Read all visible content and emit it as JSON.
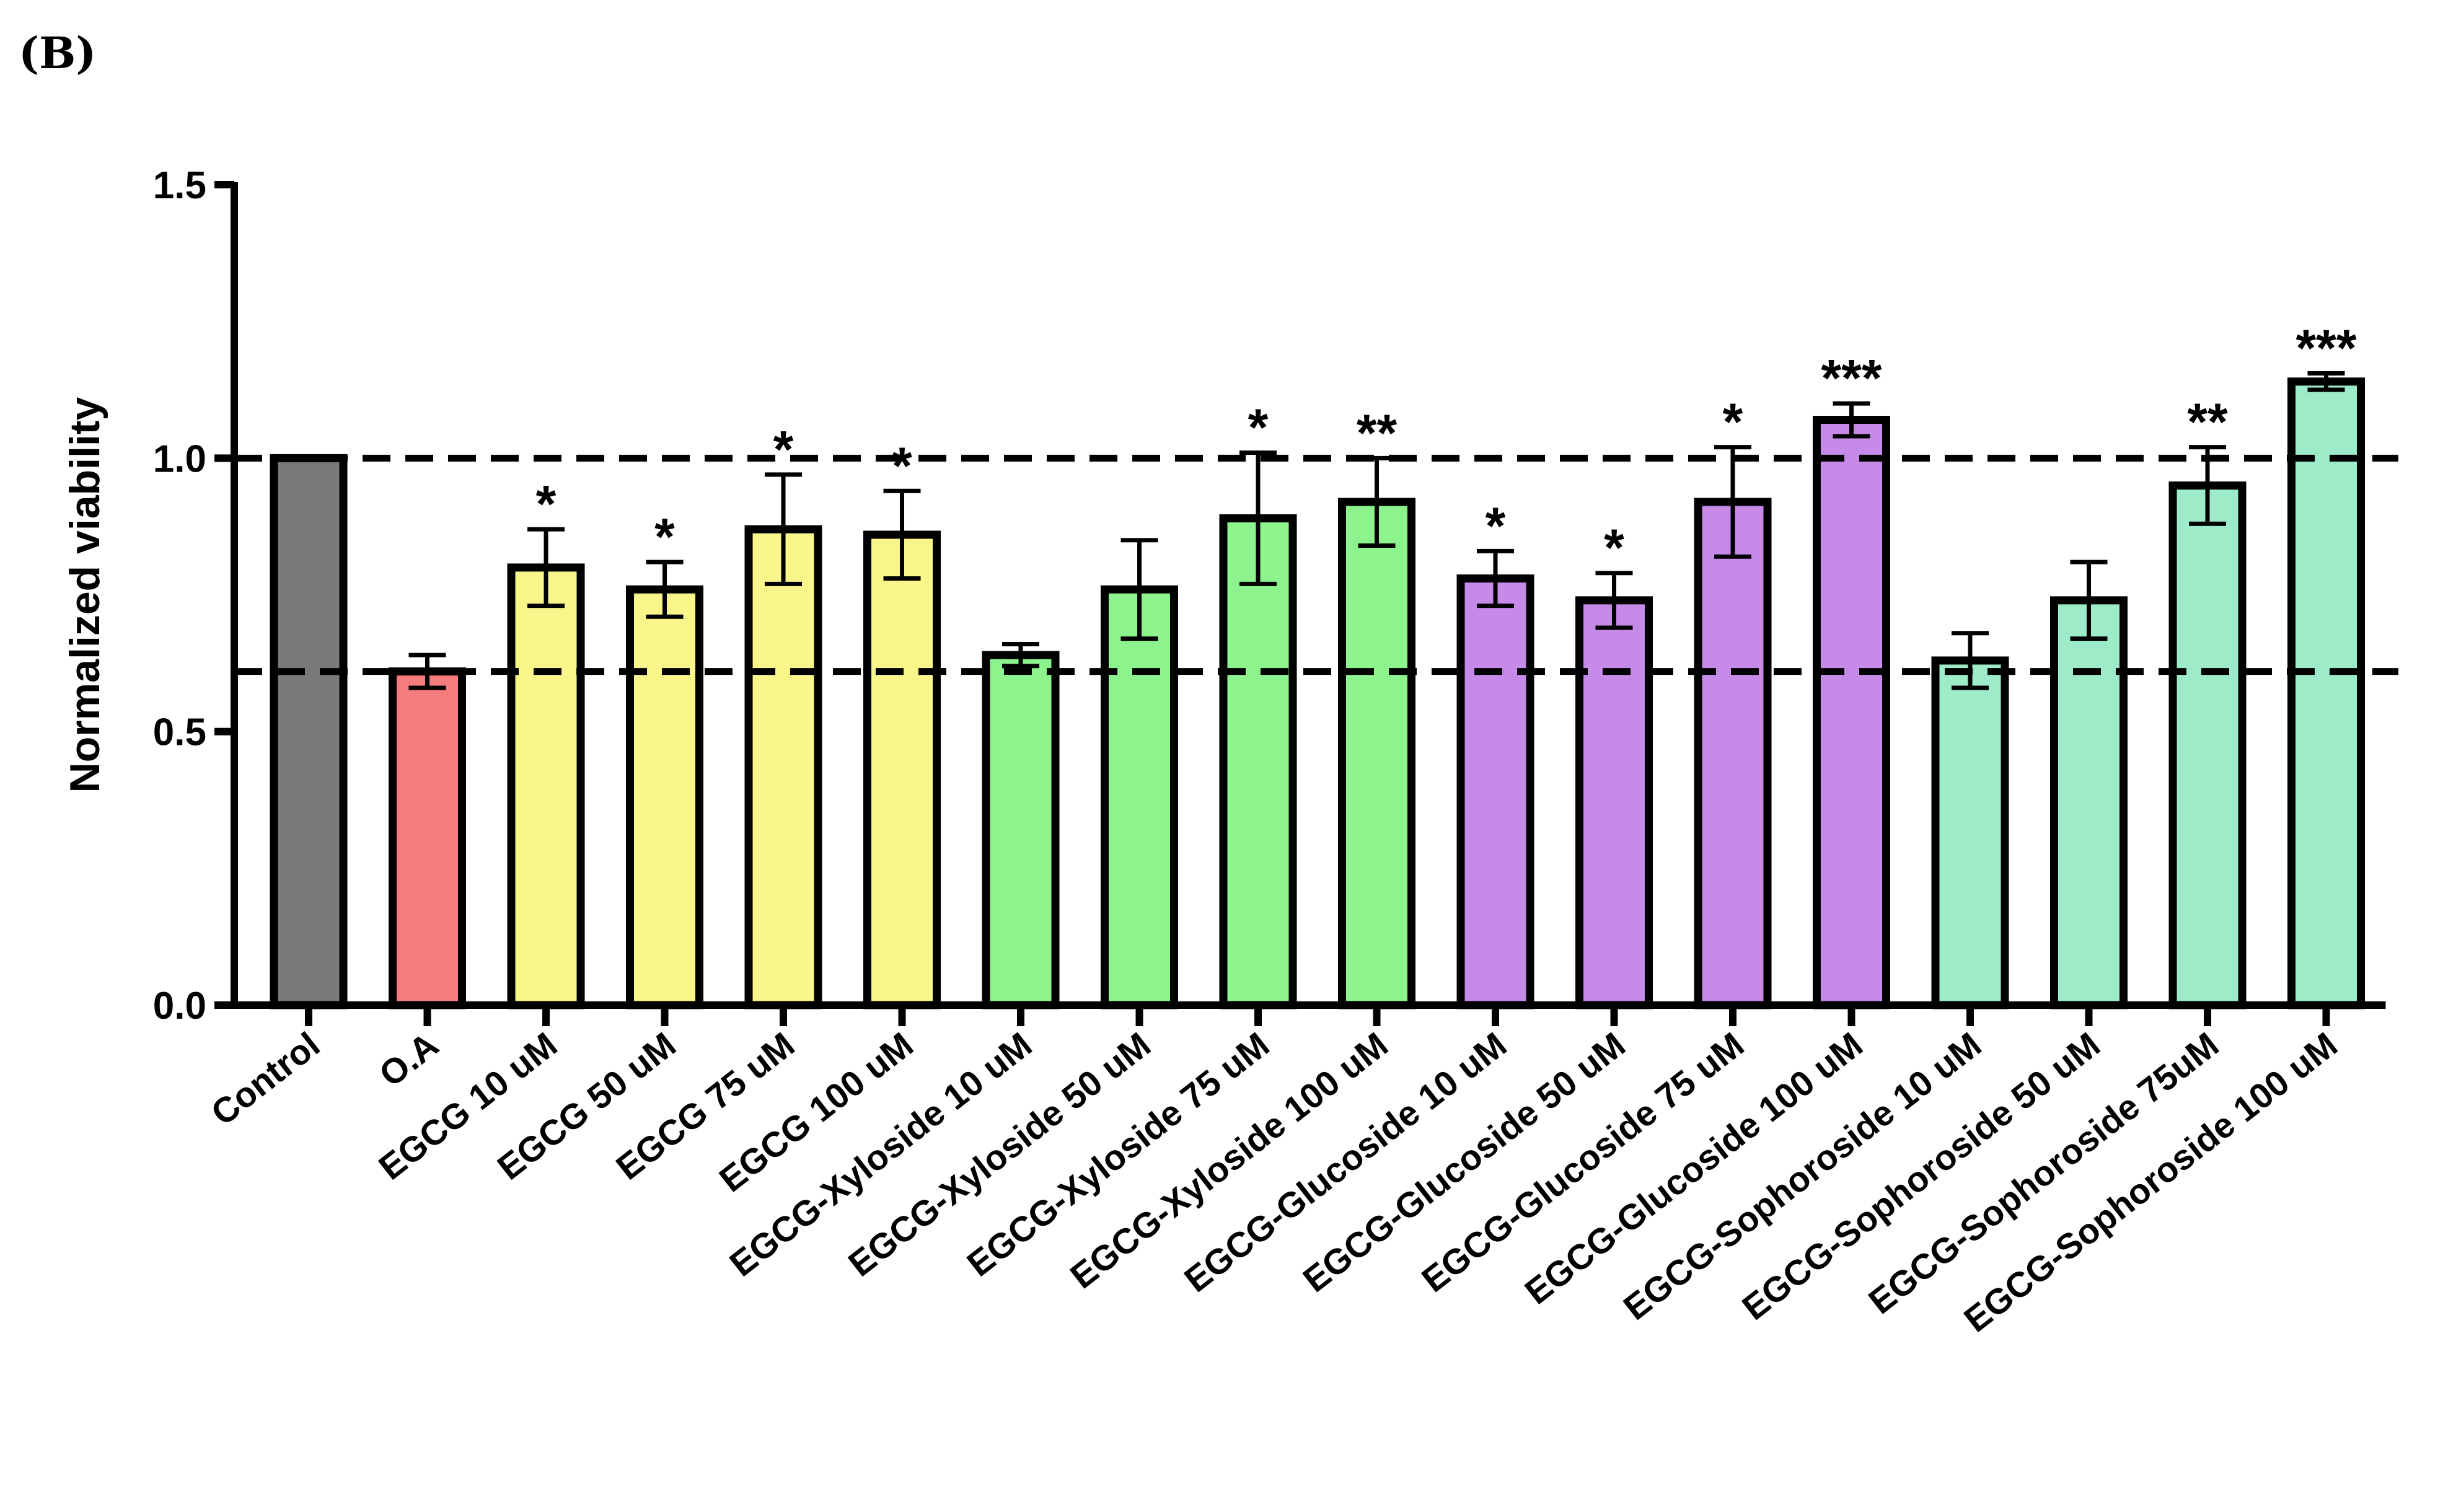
{
  "panel_label": "(B)",
  "chart_data": {
    "type": "bar",
    "title": "",
    "xlabel": "",
    "ylabel": "Normalized viability",
    "ylim": [
      0,
      1.5
    ],
    "yticks": [
      0.0,
      0.5,
      1.0,
      1.5
    ],
    "ytick_labels": [
      "0.0",
      "0.5",
      "1.0",
      "1.5"
    ],
    "reference_lines": [
      1.0,
      0.61
    ],
    "categories": [
      "Control",
      "O.A",
      "EGCG 10 uM",
      "EGCG 50 uM",
      "EGCG 75 uM",
      "EGCG 100 uM",
      "EGCG-Xyloside 10 uM",
      "EGCG-Xyloside 50 uM",
      "EGCG-Xyloside 75 uM",
      "EGCG-Xyloside 100 uM",
      "EGCG-Glucoside 10 uM",
      "EGCG-Glucoside 50 uM",
      "EGCG-Glucoside 75 uM",
      "EGCG-Glucoside 100 uM",
      "EGCG-Sophoroside 10 uM",
      "EGCG-Sophoroside 50 uM",
      "EGCG-Sophoroside 75uM",
      "EGCG-Sophoroside 100 uM"
    ],
    "values": [
      1.0,
      0.61,
      0.8,
      0.76,
      0.87,
      0.86,
      0.64,
      0.76,
      0.89,
      0.92,
      0.78,
      0.74,
      0.92,
      1.07,
      0.63,
      0.74,
      0.95,
      1.14
    ],
    "errors": [
      0.0,
      0.03,
      0.07,
      0.05,
      0.1,
      0.08,
      0.02,
      0.09,
      0.12,
      0.08,
      0.05,
      0.05,
      0.1,
      0.03,
      0.05,
      0.07,
      0.07,
      0.015
    ],
    "significance": [
      "",
      "",
      "*",
      "*",
      "*",
      "*",
      "",
      "",
      "*",
      "**",
      "*",
      "*",
      "*",
      "***",
      "",
      "",
      "**",
      "***"
    ],
    "colors": [
      "#7a7a7a",
      "#f47c7c",
      "#f8f58a",
      "#f8f58a",
      "#f8f58a",
      "#f8f58a",
      "#8df48d",
      "#8df48d",
      "#8df48d",
      "#8df48d",
      "#c68ae8",
      "#c68ae8",
      "#c68ae8",
      "#c68ae8",
      "#9eebc9",
      "#9eebc9",
      "#9eebc9",
      "#9eebc9"
    ]
  }
}
